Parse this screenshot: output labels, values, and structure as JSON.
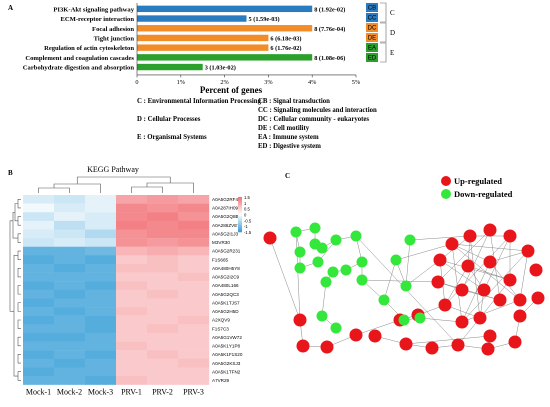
{
  "panel_labels": {
    "a": "A",
    "b": "B",
    "c": "C"
  },
  "colors": {
    "CB": "#2b7bc1",
    "CC": "#2b7bc1",
    "DC": "#f28c28",
    "DE": "#f28c28",
    "EA": "#2ca02c",
    "ED": "#2ca02c",
    "up": "#e8161b",
    "down": "#33e83a",
    "heat_high": "#f2777c",
    "heat_mid": "#ffffff",
    "heat_low": "#3ba0d8"
  },
  "chart_data": [
    {
      "type": "bar",
      "orientation": "horizontal",
      "xlabel": "Percent of genes",
      "xlim": [
        0,
        5
      ],
      "xticks": [
        "0",
        "1%",
        "2%",
        "3%",
        "4%",
        "5%"
      ],
      "categories": [
        "PI3K-Akt signaling pathway",
        "ECM-receptor interaction",
        "Focal adhesion",
        "Tight junction",
        "Regulation of actin cytoskeleton",
        "Complement and coagulation cascades",
        "Carbohydrate digestion and absorption"
      ],
      "values": [
        4.0,
        2.5,
        4.0,
        3.0,
        3.0,
        4.0,
        1.5
      ],
      "data_labels": [
        "8 (1.92e-02)",
        "5 (1.59e-03)",
        "8 (7.76e-04)",
        "6 (6.18e-03)",
        "6 (1.76e-02)",
        "8 (1.08e-06)",
        "3 (1.03e-02)"
      ],
      "groups": [
        "CB",
        "CC",
        "DC",
        "DE",
        "DE",
        "EA",
        "ED"
      ],
      "group_legend": [
        {
          "code": "CB",
          "class": "C"
        },
        {
          "code": "CC",
          "class": "C"
        },
        {
          "code": "DC",
          "class": "D"
        },
        {
          "code": "DE",
          "class": "D"
        },
        {
          "code": "EA",
          "class": "E"
        },
        {
          "code": "ED",
          "class": "E"
        }
      ],
      "legend_key": [
        "C : Environmental Information Processing",
        "CB : Signal transduction",
        "CC : Signaling molecules and interaction",
        "D : Cellular Processes",
        "DC : Cellular community - eukaryotes",
        "DE : Cell motility",
        "E : Organismal Systems",
        "EA : Immune system",
        "ED : Digestive system"
      ]
    },
    {
      "type": "heatmap",
      "title": "KEGG  Pathway",
      "columns": [
        "Mock-1",
        "Mock-2",
        "Mock-3",
        "PRV-1",
        "PRV-2",
        "PRV-3"
      ],
      "rows": [
        "A0A5G2RF47",
        "A0A287IH09",
        "A0A5G2Q8B9",
        "A0A286ZVE7",
        "A0A5G2I1J3",
        "M3VR30",
        "A0A5G2R231",
        "F1S665",
        "A0A480H5Y8",
        "A0A5G2I2C9",
        "A0A480L166",
        "A0A5G2QC3",
        "A0A5K1TJS7",
        "A0A5G2H5D",
        "A2XQV9",
        "F1S7C3",
        "A0A5G1VW72",
        "A0A5K1Y1P8",
        "A0A5K1F1S20",
        "A0A5G2KSJ3",
        "A0A5K1TFN2",
        "A7VR29"
      ],
      "scale_ticks": [
        "1.5",
        "1",
        "0.5",
        "0",
        "-0.5",
        "-1",
        "-1.5"
      ],
      "values": [
        [
          -0.3,
          -0.4,
          -0.2,
          1.0,
          1.1,
          1.0
        ],
        [
          -0.1,
          -0.3,
          -0.2,
          1.3,
          1.2,
          1.3
        ],
        [
          -0.4,
          -0.2,
          -0.3,
          1.3,
          1.4,
          1.2
        ],
        [
          -0.2,
          -0.5,
          -0.3,
          1.4,
          1.3,
          1.4
        ],
        [
          -0.3,
          -0.4,
          -0.6,
          1.2,
          1.3,
          1.3
        ],
        [
          -0.4,
          -0.3,
          -0.4,
          1.2,
          1.1,
          1.2
        ],
        [
          -1.2,
          -1.2,
          -1.1,
          0.8,
          0.9,
          0.8
        ],
        [
          -1.3,
          -1.2,
          -1.3,
          0.6,
          0.7,
          0.6
        ],
        [
          -1.2,
          -1.3,
          -1.2,
          0.7,
          0.7,
          0.6
        ],
        [
          -1.2,
          -1.2,
          -1.2,
          0.6,
          0.6,
          0.7
        ],
        [
          -1.3,
          -1.2,
          -1.3,
          0.7,
          0.6,
          0.6
        ],
        [
          -1.2,
          -1.3,
          -1.2,
          0.6,
          0.7,
          0.6
        ],
        [
          -1.3,
          -1.2,
          -1.2,
          0.6,
          0.6,
          0.6
        ],
        [
          -1.2,
          -1.3,
          -1.2,
          0.7,
          0.6,
          0.6
        ],
        [
          -1.3,
          -1.2,
          -1.3,
          0.6,
          0.6,
          0.7
        ],
        [
          -1.2,
          -1.2,
          -1.3,
          0.6,
          0.7,
          0.6
        ],
        [
          -1.3,
          -1.3,
          -1.2,
          0.6,
          0.6,
          0.6
        ],
        [
          -1.2,
          -1.2,
          -1.2,
          0.7,
          0.6,
          0.6
        ],
        [
          -1.3,
          -1.2,
          -1.3,
          0.6,
          0.7,
          0.6
        ],
        [
          -1.2,
          -1.3,
          -1.2,
          0.6,
          0.6,
          0.7
        ],
        [
          -1.3,
          -1.2,
          -1.2,
          0.6,
          0.6,
          0.6
        ],
        [
          -1.2,
          -1.2,
          -1.3,
          0.7,
          0.6,
          0.6
        ]
      ]
    }
  ],
  "network": {
    "legend": [
      {
        "label": "Up-regulated",
        "color_key": "up"
      },
      {
        "label": "Down-regulated",
        "color_key": "down"
      }
    ]
  }
}
